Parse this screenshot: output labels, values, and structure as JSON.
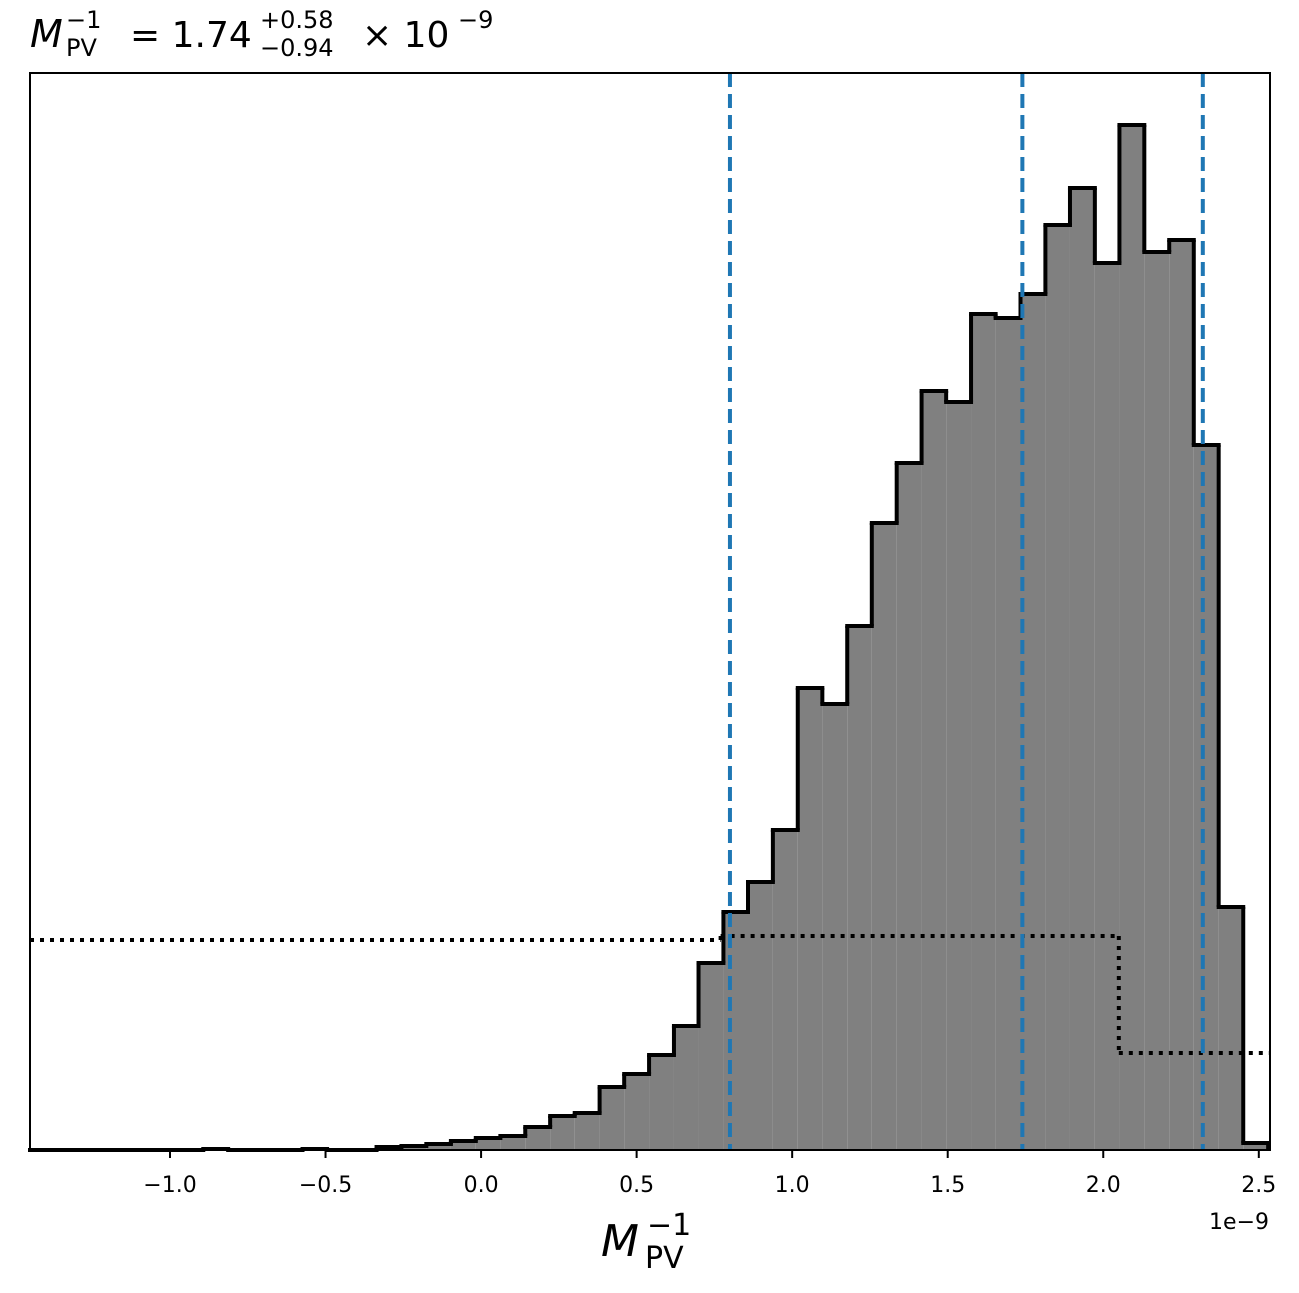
{
  "chart_data": {
    "type": "histogram",
    "title": {
      "symbol": "M",
      "sub": "PV",
      "sup": "−1",
      "eq": "= 1.74",
      "upper": "+0.58",
      "lower": "−0.94",
      "times": "× 10",
      "exp": "−9"
    },
    "xlabel": {
      "symbol": "M",
      "sub": "PV",
      "sup": "−1"
    },
    "x_offset_label": "1e−9",
    "xlim": [
      -1.45,
      2.536
    ],
    "ylim": [
      0,
      1077
    ],
    "xticks": [
      {
        "value": -1.0,
        "label": "−1.0"
      },
      {
        "value": -0.5,
        "label": "−0.5"
      },
      {
        "value": 0.0,
        "label": "0.0"
      },
      {
        "value": 0.5,
        "label": "0.5"
      },
      {
        "value": 1.0,
        "label": "1.0"
      },
      {
        "value": 1.5,
        "label": "1.5"
      },
      {
        "value": 2.0,
        "label": "2.0"
      },
      {
        "value": 2.5,
        "label": "2.5"
      }
    ],
    "bins": [
      -1.45,
      -1.37,
      -1.291,
      -1.211,
      -1.132,
      -1.052,
      -0.972,
      -0.893,
      -0.813,
      -0.734,
      -0.654,
      -0.574,
      -0.495,
      -0.415,
      -0.336,
      -0.256,
      -0.176,
      -0.097,
      -0.017,
      0.062,
      0.142,
      0.222,
      0.301,
      0.381,
      0.46,
      0.54,
      0.62,
      0.699,
      0.779,
      0.858,
      0.938,
      1.018,
      1.097,
      1.177,
      1.256,
      1.336,
      1.416,
      1.495,
      1.575,
      1.654,
      1.734,
      1.814,
      1.893,
      1.973,
      2.052,
      2.132,
      2.212,
      2.291,
      2.371,
      2.45,
      2.53
    ],
    "values": [
      0,
      0,
      0,
      0,
      0,
      0,
      0,
      1,
      0,
      0,
      0,
      1,
      0,
      0,
      3,
      4,
      6,
      9,
      12,
      14,
      23,
      34,
      37,
      63,
      76,
      95,
      124,
      187,
      238,
      268,
      320,
      462,
      446,
      524,
      627,
      687,
      759,
      748,
      836,
      832,
      856,
      925,
      962,
      887,
      1025,
      898,
      910,
      705,
      243,
      7
    ],
    "color": "#808080",
    "edge_color": "#000000",
    "prior": {
      "edges": [
        -1.45,
        0.77,
        2.05,
        2.536
      ],
      "values": [
        210,
        214,
        97
      ],
      "color": "#000000"
    },
    "vlines": {
      "x": [
        0.8,
        1.74,
        2.32
      ],
      "color": "#1f77b4"
    }
  }
}
